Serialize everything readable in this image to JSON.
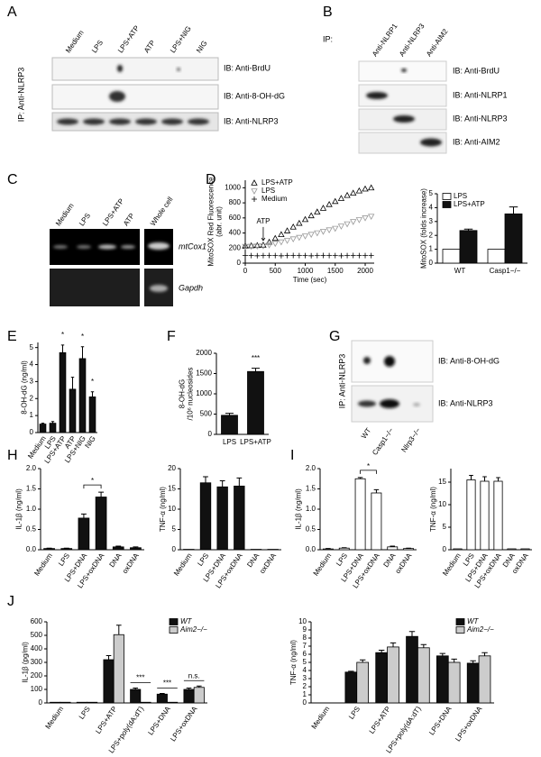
{
  "panel_labels": [
    "A",
    "B",
    "C",
    "D",
    "E",
    "F",
    "G",
    "H",
    "I",
    "J"
  ],
  "blot_A": {
    "ip": "IP: Anti-NLRP3",
    "lanes": [
      "Medium",
      "LPS",
      "LPS+ATP",
      "ATP",
      "LPS+NIG",
      "NIG"
    ],
    "ib": [
      "IB: Anti-BrdU",
      "IB: Anti-8-OH-dG",
      "IB: Anti-NLRP3"
    ]
  },
  "blot_B": {
    "ip": "IP:",
    "lanes": [
      "Anti-NLRP1",
      "Anti-NLRP3",
      "Anti-AIM2"
    ],
    "ib": [
      "IB: Anti-BrdU",
      "IB: Anti-NLRP1",
      "IB: Anti-NLRP3",
      "IB: Anti-AIM2"
    ]
  },
  "gel_C": {
    "lanes": [
      "Medium",
      "LPS",
      "LPS+ATP",
      "ATP",
      "Whole cell"
    ],
    "genes": [
      "mtCox1",
      "Gapdh"
    ]
  },
  "blot_G": {
    "ip": "IP: Anti-NLRP3",
    "ib": [
      "IB: Anti-8-OH-dG",
      "IB: Anti-NLRP3"
    ],
    "lanes": [
      "WT",
      "Casp1−/−",
      "Nlrp3−/−"
    ]
  },
  "chart_data": [
    {
      "type": "line",
      "ylabel": [
        "MitoSOX Red Fluorescence",
        "(abr. unit)"
      ],
      "xlabel": "Time (sec)",
      "legend": "upper left",
      "x": [
        0,
        100,
        200,
        300,
        400,
        500,
        600,
        700,
        800,
        900,
        1000,
        1100,
        1200,
        1300,
        1400,
        1500,
        1600,
        1700,
        1800,
        1900,
        2000,
        2100
      ],
      "series": [
        {
          "name": "LPS+ATP",
          "color": "#000000",
          "marker": "triangle-up",
          "values": [
            230,
            232,
            235,
            240,
            280,
            330,
            380,
            430,
            480,
            530,
            580,
            630,
            680,
            730,
            780,
            820,
            860,
            900,
            930,
            960,
            985,
            1000
          ]
        },
        {
          "name": "LPS",
          "color": "#999999",
          "marker": "triangle-down",
          "values": [
            220,
            222,
            225,
            228,
            240,
            260,
            280,
            300,
            320,
            340,
            360,
            380,
            400,
            420,
            440,
            460,
            490,
            520,
            550,
            575,
            600,
            620
          ]
        },
        {
          "name": "Medium",
          "color": "#000000",
          "marker": "plus",
          "values": [
            100,
            100,
            98,
            100,
            102,
            100,
            98,
            100,
            102,
            100,
            100,
            98,
            100,
            102,
            100,
            100,
            98,
            100,
            102,
            100,
            100,
            100
          ]
        }
      ],
      "annotations": [
        {
          "text": "ATP",
          "x": 300
        }
      ],
      "xlim": [
        0,
        2150
      ],
      "xticks": [
        0,
        500,
        1000,
        1500,
        2000
      ],
      "ylim": [
        0,
        1100
      ],
      "yticks": [
        0,
        200,
        400,
        600,
        800,
        1000
      ]
    },
    {
      "type": "bar",
      "ylabel": "MitoSOX (folds increase)",
      "legend": "upper left",
      "categories": [
        "WT",
        "Casp1−/−"
      ],
      "series": [
        {
          "name": "LPS",
          "color": "#ffffff",
          "values": [
            1,
            1
          ],
          "errors": [
            0,
            0
          ]
        },
        {
          "name": "LPS+ATP",
          "color": "#111111",
          "values": [
            2.35,
            3.55
          ],
          "errors": [
            0.1,
            0.5
          ]
        }
      ],
      "ylim": [
        0,
        5
      ],
      "yticks": [
        0,
        1,
        2,
        3,
        4,
        5
      ]
    },
    {
      "type": "bar",
      "ylabel": "8-OH-dG (ng/ml)",
      "categories": [
        "Medium",
        "LPS",
        "LPS+ATP",
        "ATP",
        "LPS+NIG",
        "NIG"
      ],
      "series": [
        {
          "color": "#111111",
          "values": [
            0.5,
            0.55,
            4.7,
            2.55,
            4.35,
            2.1
          ],
          "errors": [
            0.05,
            0.1,
            0.45,
            0.7,
            0.7,
            0.3
          ]
        }
      ],
      "annotations": [
        {
          "text": "*",
          "category": "LPS+ATP"
        },
        {
          "text": "*",
          "category": "LPS+NIG"
        },
        {
          "text": "*",
          "category": "NIG"
        }
      ],
      "ylim": [
        0,
        5.3
      ],
      "yticks": [
        0,
        1,
        2,
        3,
        4,
        5
      ]
    },
    {
      "type": "bar",
      "ylabel": [
        "8-OH-dG",
        "/10⁶ nucleosides"
      ],
      "categories": [
        "LPS",
        "LPS+ATP"
      ],
      "series": [
        {
          "color": "#111111",
          "values": [
            470,
            1550
          ],
          "errors": [
            50,
            80
          ]
        }
      ],
      "annotations": [
        {
          "text": "***",
          "category": "LPS+ATP"
        }
      ],
      "ylim": [
        0,
        2000
      ],
      "yticks": [
        0,
        500,
        1000,
        1500,
        2000
      ]
    },
    {
      "type": "bar",
      "ylabel": "IL-1β (ng/ml)",
      "categories": [
        "Medium",
        "LPS",
        "LPS+DNA",
        "LPS+oxDNA",
        "DNA",
        "oxDNA"
      ],
      "series": [
        {
          "color": "#111111",
          "values": [
            0.03,
            0.03,
            0.78,
            1.3,
            0.07,
            0.05
          ],
          "errors": [
            0.01,
            0.01,
            0.1,
            0.12,
            0.02,
            0.02
          ]
        }
      ],
      "annotations": [
        {
          "text": "*",
          "categories": [
            "LPS+DNA",
            "LPS+oxDNA"
          ]
        }
      ],
      "ylim": [
        0,
        2
      ],
      "yticks": [
        {
          "value": 0,
          "label": "0.0"
        },
        0.5,
        {
          "value": 1,
          "label": "1.0"
        },
        1.5,
        {
          "value": 2,
          "label": "2.0"
        }
      ]
    },
    {
      "type": "bar",
      "ylabel": "TNF-α (ng/ml)",
      "categories": [
        "Medium",
        "LPS",
        "LPS+DNA",
        "LPS+oxDNA",
        "DNA",
        "oxDNA"
      ],
      "series": [
        {
          "color": "#111111",
          "values": [
            0.1,
            16.5,
            15.5,
            15.7,
            0.1,
            0.1
          ],
          "errors": [
            0,
            1.5,
            1.5,
            2,
            0,
            0
          ]
        }
      ],
      "ylim": [
        0,
        20
      ],
      "yticks": [
        0,
        5,
        10,
        15,
        20
      ]
    },
    {
      "type": "bar",
      "ylabel": "IL-1β (ng/ml)",
      "categories": [
        "Medium",
        "LPS",
        "LPS+DNA",
        "LPS+oxDNA",
        "DNA",
        "oxDNA"
      ],
      "series": [
        {
          "color": "#ffffff",
          "values": [
            0.02,
            0.04,
            1.75,
            1.4,
            0.07,
            0.03
          ],
          "errors": [
            0.01,
            0.01,
            0.03,
            0.08,
            0.02,
            0.01
          ]
        }
      ],
      "annotations": [
        {
          "text": "*",
          "categories": [
            "LPS+DNA",
            "LPS+oxDNA"
          ]
        }
      ],
      "ylim": [
        0,
        2
      ],
      "yticks": [
        {
          "value": 0,
          "label": "0.0"
        },
        0.5,
        {
          "value": 1,
          "label": "1.0"
        },
        1.5,
        {
          "value": 2,
          "label": "2.0"
        }
      ]
    },
    {
      "type": "bar",
      "ylabel": "TNF-α (ng/ml)",
      "categories": [
        "Medium",
        "LPS",
        "LPS+DNA",
        "LPS+oxDNA",
        "DNA",
        "oxDNA"
      ],
      "series": [
        {
          "color": "#ffffff",
          "values": [
            0.2,
            15.5,
            15.2,
            15.2,
            0.2,
            0.2
          ],
          "errors": [
            0,
            1,
            1,
            0.8,
            0,
            0
          ]
        }
      ],
      "ylim": [
        0,
        18
      ],
      "yticks": [
        0,
        5,
        10,
        15
      ]
    },
    {
      "type": "bar",
      "ylabel": "IL-1β (pg/ml)",
      "legend": "upper right",
      "categories": [
        "Medium",
        "LPS",
        "LPS+ATP",
        "LPS+poly(dA:dT)",
        "LPS+DNA",
        "LPS+oxDNA"
      ],
      "series": [
        {
          "name": "WT",
          "color": "#111111",
          "values": [
            5,
            5,
            320,
            100,
            65,
            100
          ],
          "errors": [
            0,
            0,
            30,
            10,
            5,
            10
          ]
        },
        {
          "name": "Aim2−/−",
          "color": "#cccccc",
          "values": [
            5,
            5,
            505,
            5,
            5,
            115
          ],
          "errors": [
            0,
            0,
            70,
            0,
            0,
            10
          ]
        }
      ],
      "annotations": [
        {
          "text": "***",
          "category": "LPS+poly(dA:dT)"
        },
        {
          "text": "***",
          "category": "LPS+DNA"
        },
        {
          "text": "n.s.",
          "category": "LPS+oxDNA"
        }
      ],
      "ylim": [
        0,
        600
      ],
      "yticks": [
        0,
        100,
        200,
        300,
        400,
        500,
        600
      ]
    },
    {
      "type": "bar",
      "ylabel": "TNF-α (ng/ml)",
      "legend": "upper right",
      "categories": [
        "Medium",
        "LPS",
        "LPS+ATP",
        "LPS+poly(dA:dT)",
        "LPS+DNA",
        "LPS+oxDNA"
      ],
      "series": [
        {
          "name": "WT",
          "color": "#111111",
          "values": [
            0,
            3.8,
            6.2,
            8.2,
            5.8,
            4.9
          ],
          "errors": [
            0,
            0.1,
            0.3,
            0.6,
            0.3,
            0.3
          ]
        },
        {
          "name": "Aim2−/−",
          "color": "#cccccc",
          "values": [
            0,
            5,
            6.9,
            6.8,
            5,
            5.8
          ],
          "errors": [
            0,
            0.3,
            0.5,
            0.4,
            0.4,
            0.4
          ]
        }
      ],
      "ylim": [
        0,
        10
      ],
      "yticks": [
        0,
        1,
        2,
        3,
        4,
        5,
        6,
        7,
        8,
        9,
        10
      ]
    }
  ]
}
